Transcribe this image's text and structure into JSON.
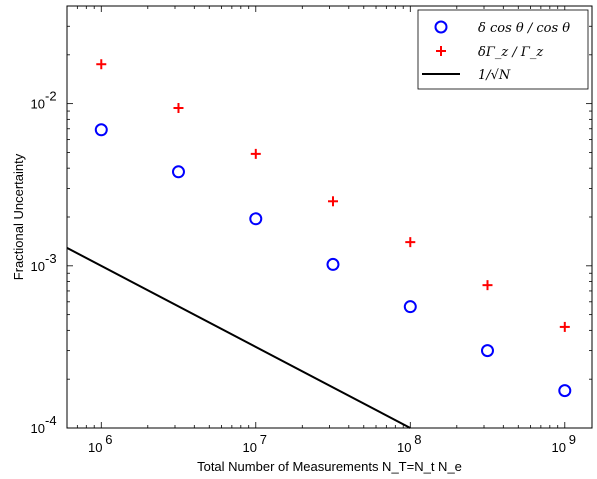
{
  "chart_data": {
    "type": "scatter",
    "xlabel": "Total Number of Measurements N_T=N_t N_e",
    "ylabel": "Fractional Uncertainty",
    "xscale": "log",
    "yscale": "log",
    "xlim": [
      600000,
      1500000000
    ],
    "ylim": [
      0.0001,
      0.04
    ],
    "grid": false,
    "legend_position": "top-right",
    "x_ticks": [
      {
        "value": 1000000,
        "base": "10",
        "exp": "6"
      },
      {
        "value": 10000000,
        "base": "10",
        "exp": "7"
      },
      {
        "value": 100000000,
        "base": "10",
        "exp": "8"
      },
      {
        "value": 1000000000,
        "base": "10",
        "exp": "9"
      }
    ],
    "y_ticks": [
      {
        "value": 0.0001,
        "base": "10",
        "exp": "-4"
      },
      {
        "value": 0.001,
        "base": "10",
        "exp": "-3"
      },
      {
        "value": 0.01,
        "base": "10",
        "exp": "-2"
      }
    ],
    "series": [
      {
        "name": "δ cos θ / cos θ",
        "marker": "circle",
        "color": "#0000ff",
        "x": [
          1000000,
          3160000,
          10000000,
          31600000,
          100000000,
          316000000,
          1000000000
        ],
        "y": [
          0.0069,
          0.0038,
          0.00195,
          0.00102,
          0.00056,
          0.0003,
          0.00017
        ]
      },
      {
        "name": "δΓ_z / Γ_z",
        "marker": "plus",
        "color": "#ff0000",
        "x": [
          1000000,
          3160000,
          10000000,
          31600000,
          100000000,
          316000000,
          1000000000
        ],
        "y": [
          0.0175,
          0.0094,
          0.0049,
          0.0025,
          0.0014,
          0.00076,
          0.00042
        ]
      },
      {
        "name": "1/√N",
        "marker": "line",
        "color": "#000000",
        "x": [
          600000,
          100000000
        ],
        "y": [
          0.00129,
          0.0001
        ]
      }
    ]
  }
}
